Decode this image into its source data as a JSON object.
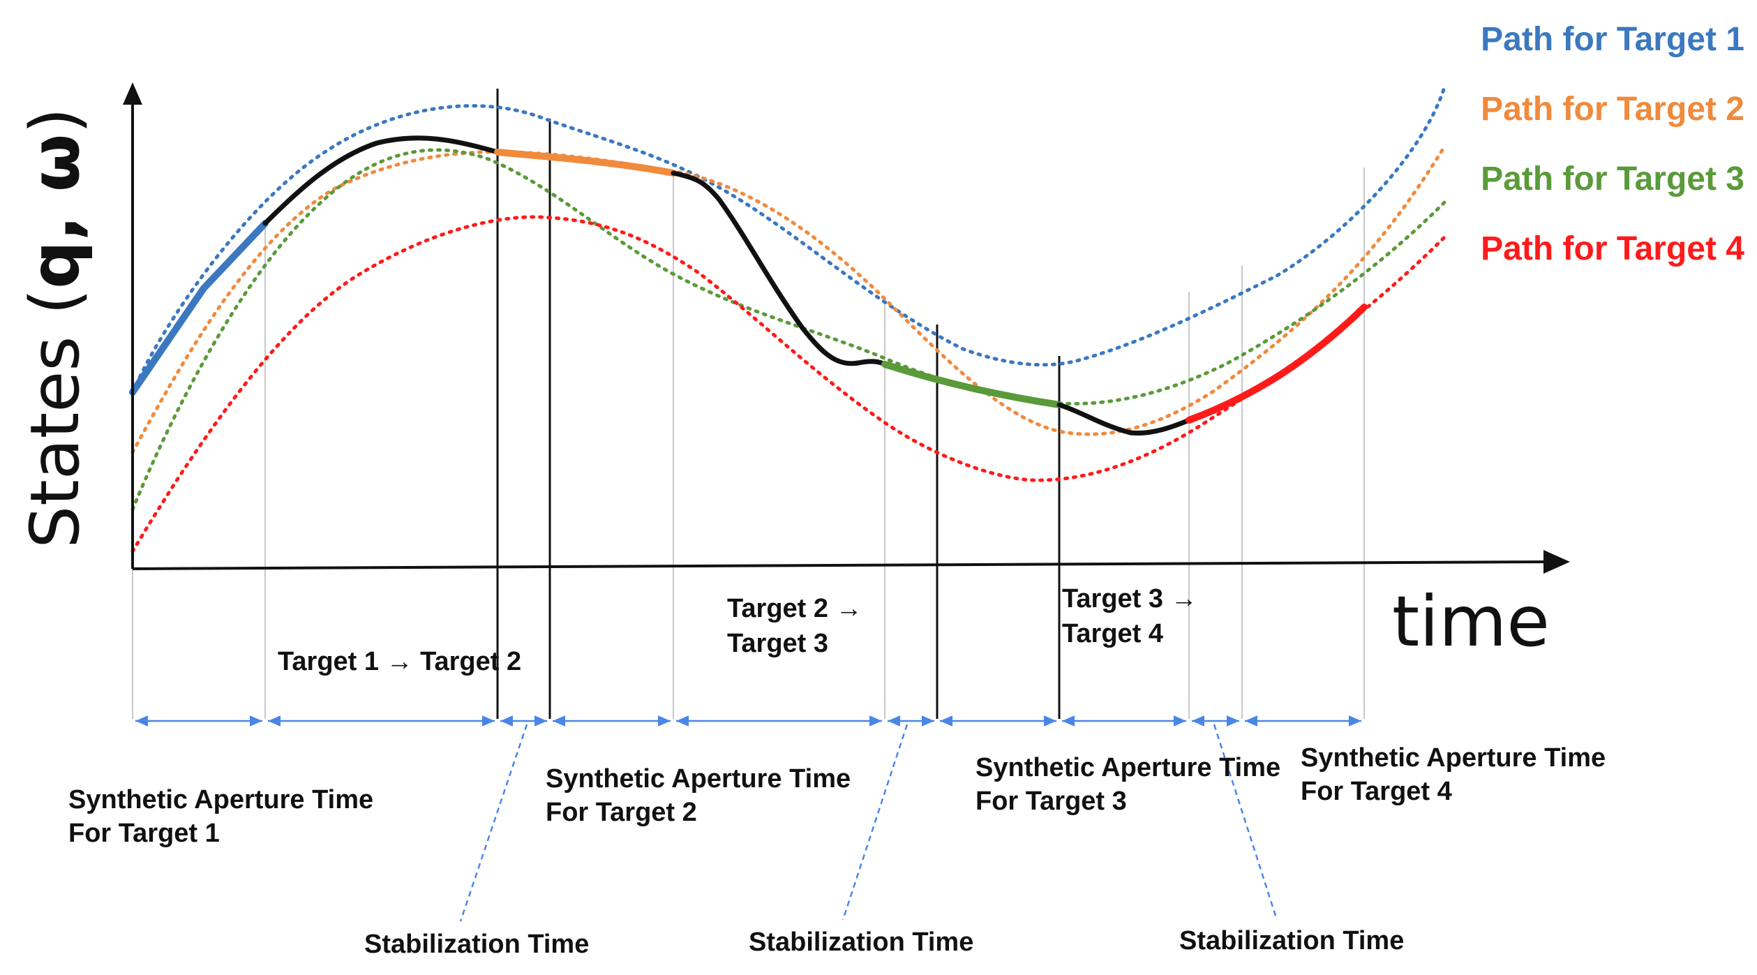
{
  "axes": {
    "y_label_prefix": "States (",
    "y_label_vars": "q, ω",
    "y_label_suffix": ")",
    "x_label": "time"
  },
  "legend": [
    {
      "label": "Path for Target 1",
      "color": "#3b78c0"
    },
    {
      "label": "Path for Target 2",
      "color": "#f08a3c"
    },
    {
      "label": "Path for Target 3",
      "color": "#5a9a3a"
    },
    {
      "label": "Path for Target 4",
      "color": "#ff1a1a"
    }
  ],
  "transitions": {
    "t1_t2": "Target 1 → Target 2",
    "t2_t3_line1": "Target 2 →",
    "t2_t3_line2": "Target 3",
    "t3_t4_line1": "Target 3 →",
    "t3_t4_line2": "Target 4"
  },
  "aperture_labels": [
    {
      "line1": "Synthetic Aperture Time",
      "line2": "For Target 1"
    },
    {
      "line1": "Synthetic Aperture Time",
      "line2": "For Target 2"
    },
    {
      "line1": "Synthetic Aperture Time",
      "line2": "For Target 3"
    },
    {
      "line1": "Synthetic Aperture Time",
      "line2": "For Target 4"
    }
  ],
  "stabilization_labels": [
    "Stabilization  Time",
    "Stabilization  Time",
    "Stabilization  Time"
  ],
  "colors": {
    "actual_path": "#111111",
    "dimension_arrows": "#4a86e8"
  }
}
